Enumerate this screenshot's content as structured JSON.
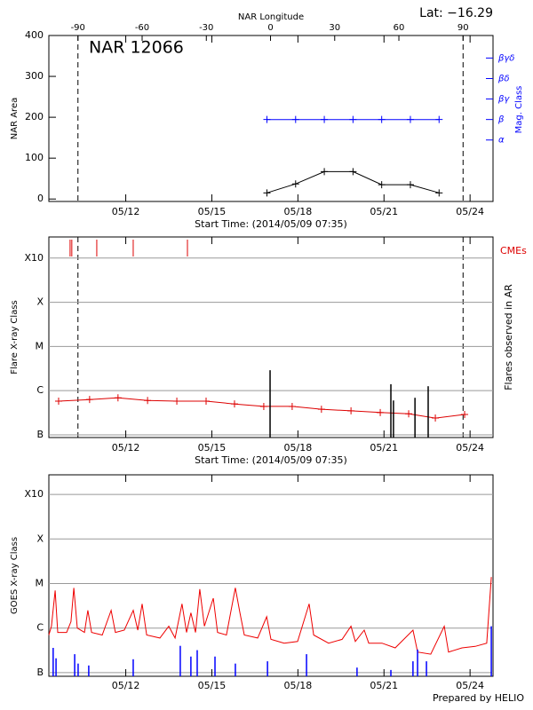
{
  "chart_data": [
    {
      "type": "line",
      "title": "NAR 12066",
      "annotation": "Lat: −16.29",
      "x2label": "NAR Longitude",
      "xlabel": "Start Time: (2014/05/09 07:35)",
      "ylabel": "NAR Area",
      "y2label": "Mag. Class",
      "xlim": [
        0,
        15.48
      ],
      "xticks": [
        {
          "value": 2.68,
          "label": "05/12"
        },
        {
          "value": 5.68,
          "label": "05/15"
        },
        {
          "value": 8.68,
          "label": "05/18"
        },
        {
          "value": 11.68,
          "label": "05/21"
        },
        {
          "value": 14.68,
          "label": "05/24"
        }
      ],
      "x2lim": [
        -103.6,
        104
      ],
      "x2ticks": [
        -90,
        -60,
        -30,
        0,
        30,
        60,
        90
      ],
      "limbs": [
        -90,
        90
      ],
      "ylim": [
        -6,
        400
      ],
      "yticks": [
        0,
        100,
        200,
        300,
        400
      ],
      "y2lim": [
        0,
        8.1
      ],
      "y2ticks": [
        {
          "value": 3,
          "label": "α"
        },
        {
          "value": 4,
          "label": "β"
        },
        {
          "value": 5,
          "label": "βγ"
        },
        {
          "value": 6,
          "label": "βδ"
        },
        {
          "value": 7,
          "label": "βγδ"
        }
      ],
      "series": [
        {
          "color": "#000000",
          "marker": "+",
          "x": [
            7.6,
            8.6,
            9.6,
            10.6,
            11.6,
            12.6,
            13.6
          ],
          "values": [
            15,
            37,
            67,
            67,
            35,
            35,
            15
          ]
        },
        {
          "color": "#0000ff",
          "marker": "+",
          "axis": "y2",
          "x": [
            7.6,
            8.6,
            9.6,
            10.6,
            11.6,
            12.6,
            13.6
          ],
          "values": [
            4,
            4,
            4,
            4,
            4,
            4,
            4
          ]
        }
      ]
    },
    {
      "type": "line",
      "xlabel": "Start Time: (2014/05/09 07:35)",
      "ylabel": "Flare X-ray Class",
      "log": true,
      "grid": true,
      "xlim": [
        0,
        15.48
      ],
      "xticks": [
        {
          "value": 2.68,
          "label": "05/12"
        },
        {
          "value": 5.68,
          "label": "05/15"
        },
        {
          "value": 8.68,
          "label": "05/18"
        },
        {
          "value": 11.68,
          "label": "05/21"
        },
        {
          "value": 14.68,
          "label": "05/24"
        }
      ],
      "ylim": [
        8.7e-08,
        0.003
      ],
      "yticks": [
        {
          "value": 1e-07,
          "label": "B"
        },
        {
          "value": 1e-06,
          "label": "C"
        },
        {
          "value": 1e-05,
          "label": "M"
        },
        {
          "value": 0.0001,
          "label": "X"
        },
        {
          "value": 0.001,
          "label": "X10"
        }
      ],
      "series": [
        {
          "color": "#dd0000",
          "marker": "+",
          "x": [
            0.34,
            1.42,
            2.41,
            3.44,
            4.46,
            5.48,
            6.47,
            7.49,
            8.48,
            9.5,
            10.53,
            11.55,
            12.54,
            13.47,
            14.49
          ],
          "values": [
            5.8e-07,
            6.3e-07,
            6.9e-07,
            6e-07,
            5.8e-07,
            5.8e-07,
            5e-07,
            4.4e-07,
            4.4e-07,
            3.8e-07,
            3.5e-07,
            3.2e-07,
            3e-07,
            2.4e-07,
            2.9e-07
          ]
        },
        {
          "name": "Flares observed in AR",
          "color": "#000000",
          "style": "spikes",
          "x": [
            7.71,
            11.92,
            12.01,
            12.76,
            13.22
          ],
          "values": [
            2.9e-06,
            1.4e-06,
            6e-07,
            6.9e-07,
            1.26e-06
          ]
        },
        {
          "name": "CMEs",
          "color": "#dd0000",
          "style": "ticks",
          "x": [
            0.74,
            0.8,
            1.67,
            2.94,
            4.83
          ]
        }
      ]
    },
    {
      "type": "line",
      "ylabel": "GOES X-ray Class",
      "log": true,
      "grid": true,
      "xlim": [
        0,
        15.48
      ],
      "xticks": [
        {
          "value": 2.68,
          "label": "05/12"
        },
        {
          "value": 5.68,
          "label": "05/15"
        },
        {
          "value": 8.68,
          "label": "05/18"
        },
        {
          "value": 11.68,
          "label": "05/21"
        },
        {
          "value": 14.68,
          "label": "05/24"
        }
      ],
      "ylim": [
        8.3e-08,
        0.00275
      ],
      "yticks": [
        {
          "value": 1e-07,
          "label": "B"
        },
        {
          "value": 1e-06,
          "label": "C"
        },
        {
          "value": 1e-05,
          "label": "M"
        },
        {
          "value": 0.0001,
          "label": "X"
        },
        {
          "value": 0.001,
          "label": "X10"
        }
      ],
      "series": [
        {
          "color": "#ee0000",
          "x": [
            0,
            0.09,
            0.22,
            0.31,
            0.62,
            0.77,
            0.87,
            0.99,
            1.24,
            1.36,
            1.49,
            1.86,
            2.17,
            2.32,
            2.63,
            2.94,
            3.1,
            3.25,
            3.41,
            3.87,
            4.18,
            4.4,
            4.64,
            4.8,
            4.95,
            5.11,
            5.26,
            5.42,
            5.73,
            5.88,
            6.19,
            6.5,
            6.66,
            6.81,
            7.28,
            7.59,
            7.74,
            8.2,
            8.67,
            9.07,
            9.23,
            9.75,
            10.22,
            10.53,
            10.68,
            10.99,
            11.15,
            11.61,
            12.07,
            12.69,
            12.85,
            13.31,
            13.78,
            13.93,
            14.4,
            14.86,
            15.26,
            15.42
          ],
          "values": [
            7e-07,
            1.1e-06,
            7e-06,
            8e-07,
            8e-07,
            1.4e-06,
            8e-06,
            1e-06,
            8e-07,
            2.5e-06,
            8e-07,
            7e-07,
            2.5e-06,
            8e-07,
            9e-07,
            2.5e-06,
            9e-07,
            3.5e-06,
            7e-07,
            6e-07,
            1.1e-06,
            6e-07,
            3.5e-06,
            8e-07,
            2.2e-06,
            8e-07,
            7.5e-06,
            1.1e-06,
            4.7e-06,
            8e-07,
            7e-07,
            8e-06,
            2.2e-06,
            7e-07,
            6e-07,
            1.8e-06,
            5.6e-07,
            4.6e-07,
            5e-07,
            3.5e-06,
            7e-07,
            4.6e-07,
            5.6e-07,
            1.1e-06,
            5e-07,
            9e-07,
            4.6e-07,
            4.6e-07,
            3.6e-07,
            9e-07,
            2.9e-07,
            2.6e-07,
            1.1e-06,
            2.9e-07,
            3.6e-07,
            3.9e-07,
            4.6e-07,
            1.4e-05
          ]
        },
        {
          "color": "#0000ff",
          "style": "spikes",
          "x": [
            0.15,
            0.25,
            0.9,
            1.02,
            1.39,
            2.94,
            4.58,
            4.95,
            5.17,
            5.79,
            6.5,
            7.62,
            8.98,
            10.74,
            11.92,
            12.69,
            12.85,
            13.16,
            15.42
          ],
          "values": [
            3.6e-07,
            2.1e-07,
            2.6e-07,
            1.6e-07,
            1.45e-07,
            2e-07,
            4e-07,
            2.3e-07,
            3.2e-07,
            2.3e-07,
            1.6e-07,
            1.8e-07,
            2.6e-07,
            1.3e-07,
            1.15e-07,
            1.8e-07,
            3.3e-07,
            1.8e-07,
            1.1e-06
          ]
        }
      ]
    }
  ],
  "footer": "Prepared by HELIO"
}
